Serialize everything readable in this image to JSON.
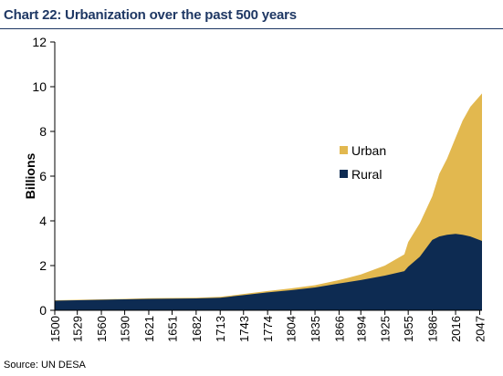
{
  "header": {
    "title": "Chart 22: Urbanization over the past 500 years"
  },
  "footer": {
    "source": "Source: UN DESA"
  },
  "colors": {
    "rural": "#0d2b52",
    "urban": "#e2b84f",
    "title": "#1f3864"
  },
  "chart_data": {
    "type": "area",
    "stacked": true,
    "title": "",
    "xlabel": "",
    "ylabel": "Billions",
    "ylim": [
      0,
      12
    ],
    "yticks": [
      0,
      2,
      4,
      6,
      8,
      10,
      12
    ],
    "xticks": [
      "1500",
      "1529",
      "1560",
      "1590",
      "1621",
      "1651",
      "1682",
      "1713",
      "1743",
      "1774",
      "1804",
      "1835",
      "1866",
      "1894",
      "1925",
      "1955",
      "1986",
      "2016",
      "2047"
    ],
    "x": [
      1500,
      1529,
      1560,
      1590,
      1621,
      1651,
      1682,
      1713,
      1743,
      1774,
      1804,
      1835,
      1866,
      1894,
      1925,
      1950,
      1955,
      1970,
      1986,
      1995,
      2005,
      2016,
      2025,
      2035,
      2050
    ],
    "series": [
      {
        "name": "Rural",
        "values": [
          0.43,
          0.45,
          0.47,
          0.49,
          0.51,
          0.52,
          0.53,
          0.56,
          0.68,
          0.8,
          0.9,
          1.02,
          1.2,
          1.35,
          1.55,
          1.75,
          1.95,
          2.4,
          3.15,
          3.3,
          3.38,
          3.42,
          3.38,
          3.3,
          3.1
        ]
      },
      {
        "name": "Urban",
        "values": [
          0.02,
          0.02,
          0.02,
          0.02,
          0.03,
          0.03,
          0.03,
          0.04,
          0.05,
          0.06,
          0.08,
          0.1,
          0.15,
          0.25,
          0.45,
          0.75,
          1.1,
          1.5,
          1.95,
          2.8,
          3.4,
          4.3,
          5.1,
          5.8,
          6.6
        ]
      }
    ],
    "legend": {
      "position": "middle-right",
      "entries": [
        "Urban",
        "Rural"
      ]
    },
    "grid": false
  }
}
